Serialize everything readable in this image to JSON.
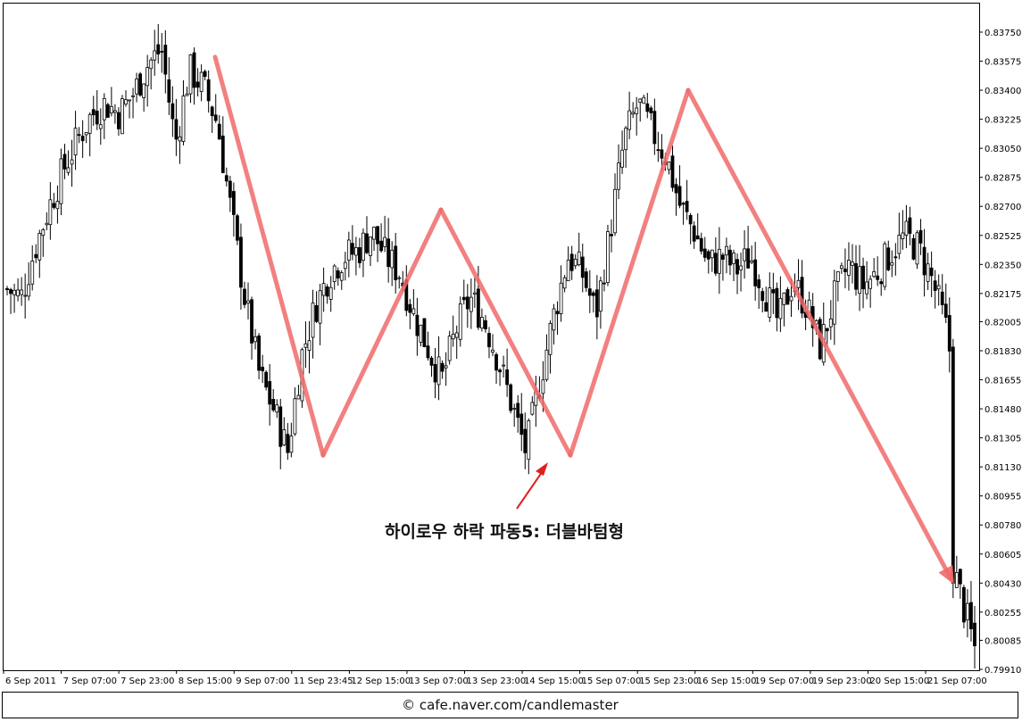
{
  "chart_data": {
    "type": "candlestick",
    "y_ticks": [
      "0.83750",
      "0.83575",
      "0.83400",
      "0.83225",
      "0.83050",
      "0.82875",
      "0.82700",
      "0.82525",
      "0.82350",
      "0.82175",
      "0.82005",
      "0.81830",
      "0.81655",
      "0.81480",
      "0.81305",
      "0.81130",
      "0.80955",
      "0.80780",
      "0.80605",
      "0.80430",
      "0.80255",
      "0.80085",
      "0.79910"
    ],
    "ylim": [
      0.7988,
      0.8393
    ],
    "x_ticks": [
      "6 Sep 2011",
      "7 Sep 07:00",
      "7 Sep 23:00",
      "8 Sep 15:00",
      "9 Sep 07:00",
      "11 Sep 23:45",
      "12 Sep 15:00",
      "13 Sep 07:00",
      "13 Sep 23:00",
      "14 Sep 15:00",
      "15 Sep 07:00",
      "15 Sep 23:00",
      "16 Sep 15:00",
      "19 Sep 07:00",
      "19 Sep 23:00",
      "20 Sep 15:00",
      "21 Sep 07:00"
    ],
    "grid": false,
    "candle_count": 270,
    "closes_anchor": [
      0.822,
      0.8215,
      0.8245,
      0.827,
      0.8292,
      0.831,
      0.8325,
      0.8332,
      0.8326,
      0.8338,
      0.8355,
      0.8365,
      0.8308,
      0.8352,
      0.8342,
      0.832,
      0.8265,
      0.8212,
      0.8168,
      0.8148,
      0.8122,
      0.818,
      0.821,
      0.823,
      0.824,
      0.8243,
      0.8255,
      0.824,
      0.823,
      0.8205,
      0.8185,
      0.8165,
      0.8195,
      0.8215,
      0.8202,
      0.8178,
      0.815,
      0.8122,
      0.8165,
      0.8205,
      0.824,
      0.823,
      0.8205,
      0.8255,
      0.831,
      0.8332,
      0.8315,
      0.83,
      0.827,
      0.8255,
      0.8235,
      0.824,
      0.8232,
      0.824,
      0.822,
      0.82,
      0.8225,
      0.821,
      0.8185,
      0.8215,
      0.8235,
      0.8222,
      0.823,
      0.8242,
      0.8252,
      0.8245,
      0.8225,
      0.8195,
      0.814,
      0.81
    ],
    "pattern_line": [
      [
        0.836,
        0.836
      ],
      [
        0.812,
        0.812
      ],
      [
        0.8268,
        0.8268
      ],
      [
        0.812,
        0.812
      ],
      [
        0.834,
        0.834
      ],
      [
        0.8045,
        0.8045
      ]
    ],
    "annotation": "하이로우 하락 파동5: 더블바텀형",
    "line_color": "#f06a6a",
    "arrow_color": "#e02020"
  },
  "footer": {
    "text": "© cafe.naver.com/candlemaster"
  }
}
